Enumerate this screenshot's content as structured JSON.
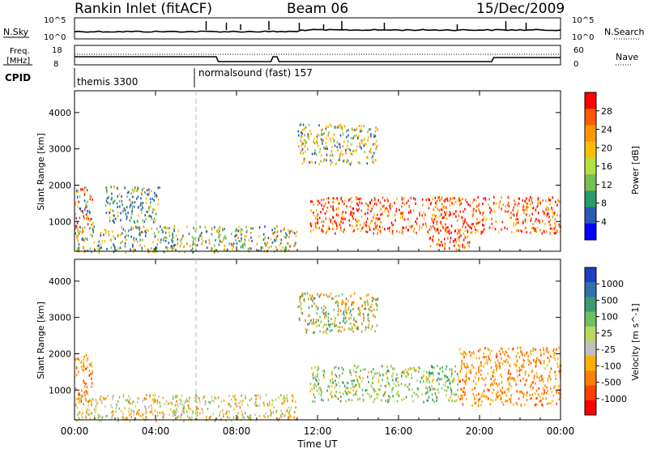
{
  "header": {
    "station": "Rankin Inlet (fitACF)",
    "beam": "Beam 06",
    "date": "15/Dec/2009"
  },
  "noise_panel": {
    "left_label": "N.Sky",
    "right_label": "N.Search",
    "left_ticks": [
      "10^5",
      "10^0"
    ],
    "right_ticks": [
      "10^5",
      "10^0"
    ]
  },
  "freq_panel": {
    "left_label_1": "Freq.",
    "left_label_2": "[MHz]",
    "right_label": "Nave",
    "left_ticks": [
      "18",
      "8"
    ],
    "right_ticks": [
      "60",
      "0"
    ]
  },
  "cpid_panel": {
    "label": "CPID",
    "segments": [
      {
        "start_hour": 0,
        "end_hour": 6,
        "text": "themis 3300"
      },
      {
        "start_hour": 6,
        "end_hour": 24,
        "text": "normalsound (fast) 157"
      }
    ]
  },
  "time_axis": {
    "title": "Time UT",
    "ticks": [
      "00:00",
      "04:00",
      "08:00",
      "12:00",
      "16:00",
      "20:00",
      "00:00"
    ]
  },
  "chart_data": [
    {
      "type": "heatmap",
      "parameter": "Power",
      "ylabel": "Slant Range [km]",
      "xlabel": "Time UT",
      "xlim_hours": [
        0,
        24
      ],
      "ylim_km": [
        180,
        4600
      ],
      "y_ticks": [
        1000,
        2000,
        3000,
        4000
      ],
      "colorbar": {
        "label": "Power [dB]",
        "ticks": [
          "28",
          "24",
          "20",
          "16",
          "12",
          "8",
          "4"
        ],
        "colors_top_to_bottom": [
          "#ff0000",
          "#ff5a00",
          "#ff9600",
          "#ffc000",
          "#b4e040",
          "#78c050",
          "#2a9a6a",
          "#2a5ab8",
          "#0000ff"
        ]
      },
      "scatter_regions": [
        {
          "t": [
            0.0,
            0.9
          ],
          "r": [
            700,
            2000
          ],
          "level": "mixed-high"
        },
        {
          "t": [
            1.5,
            4.2
          ],
          "r": [
            1000,
            2000
          ],
          "level": "low"
        },
        {
          "t": [
            0.0,
            11.0
          ],
          "r": [
            180,
            900
          ],
          "level": "low-mixed"
        },
        {
          "t": [
            11.6,
            24.0
          ],
          "r": [
            700,
            1700
          ],
          "level": "high"
        },
        {
          "t": [
            17.5,
            19.5
          ],
          "r": [
            250,
            900
          ],
          "level": "high"
        },
        {
          "t": [
            11.0,
            15.0
          ],
          "r": [
            2600,
            3700
          ],
          "level": "mid"
        }
      ]
    },
    {
      "type": "heatmap",
      "parameter": "Velocity",
      "ylabel": "Slant Range [km]",
      "xlabel": "Time UT",
      "xlim_hours": [
        0,
        24
      ],
      "ylim_km": [
        180,
        4600
      ],
      "y_ticks": [
        1000,
        2000,
        3000,
        4000
      ],
      "colorbar": {
        "label": "Velocity [m s^-1]",
        "ticks": [
          "1000",
          "500",
          "100",
          "25",
          "-25",
          "-100",
          "-500",
          "-1000"
        ],
        "colors_top_to_bottom": [
          "#2040c0",
          "#3070b0",
          "#3a9a70",
          "#70c060",
          "#b8d860",
          "#c0c0c0",
          "#ffb000",
          "#ff8000",
          "#ff4000",
          "#ff0000"
        ]
      },
      "scatter_regions": [
        {
          "t": [
            0.0,
            0.9
          ],
          "r": [
            700,
            2000
          ],
          "level": "negative"
        },
        {
          "t": [
            0.0,
            11.0
          ],
          "r": [
            180,
            900
          ],
          "level": "near-zero"
        },
        {
          "t": [
            11.6,
            19.0
          ],
          "r": [
            700,
            1700
          ],
          "level": "positive-green"
        },
        {
          "t": [
            19.0,
            24.0
          ],
          "r": [
            600,
            2200
          ],
          "level": "negative"
        },
        {
          "t": [
            11.0,
            15.0
          ],
          "r": [
            2600,
            3700
          ],
          "level": "mixed"
        }
      ]
    }
  ]
}
